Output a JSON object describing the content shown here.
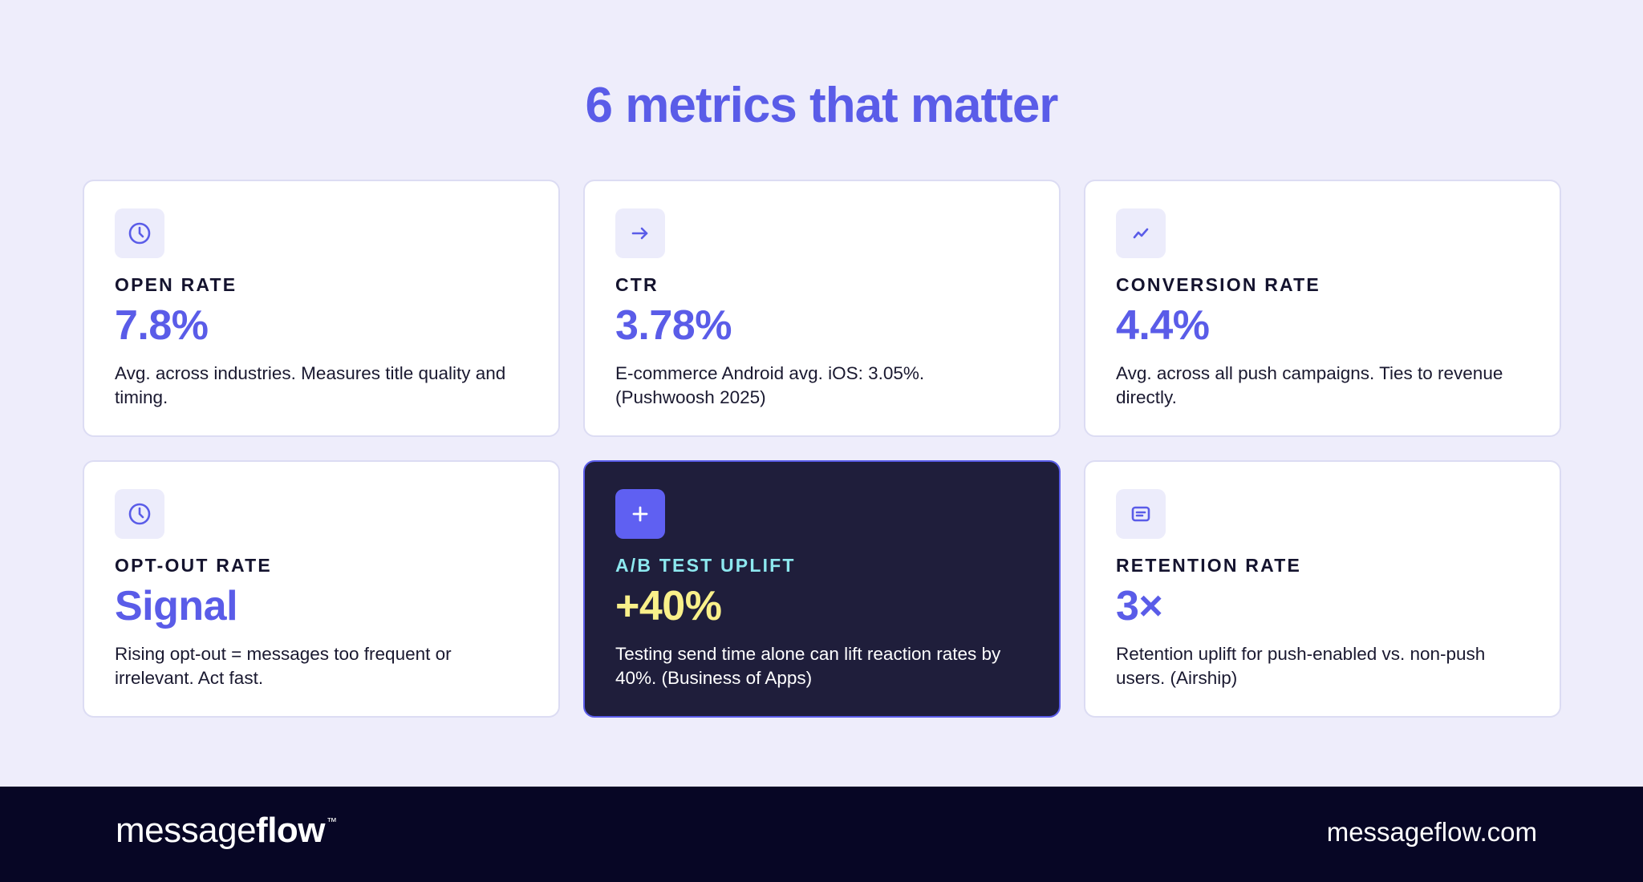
{
  "title": "6 metrics that matter",
  "colors": {
    "accent": "#5a5ce8",
    "background": "#eeedfb",
    "dark_card": "#1f1e3b",
    "dark_label": "#8de8ef",
    "dark_value": "#f9f08a",
    "footer": "#070625"
  },
  "cards": [
    {
      "icon": "clock-icon",
      "label": "OPEN RATE",
      "value": "7.8%",
      "desc": "Avg. across industries. Measures title quality and timing."
    },
    {
      "icon": "arrow-right-icon",
      "label": "CTR",
      "value": "3.78%",
      "desc": "E-commerce Android avg. iOS: 3.05%. (Pushwoosh 2025)"
    },
    {
      "icon": "trend-up-icon",
      "label": "CONVERSION RATE",
      "value": "4.4%",
      "desc": "Avg. across all push campaigns. Ties to revenue directly."
    },
    {
      "icon": "clock-icon",
      "label": "OPT-OUT RATE",
      "value": "Signal",
      "desc": "Rising opt-out = messages too frequent or irrelevant. Act fast."
    },
    {
      "icon": "plus-icon",
      "label": "A/B TEST UPLIFT",
      "value": "+40%",
      "desc": "Testing send time alone can lift reaction rates by 40%. (Business of Apps)"
    },
    {
      "icon": "message-icon",
      "label": "RETENTION RATE",
      "value": "3×",
      "desc": "Retention uplift for push-enabled vs. non-push users. (Airship)"
    }
  ],
  "footer": {
    "logo_light": "message",
    "logo_bold": "flow",
    "logo_tm": "™",
    "website": "messageflow.com"
  }
}
